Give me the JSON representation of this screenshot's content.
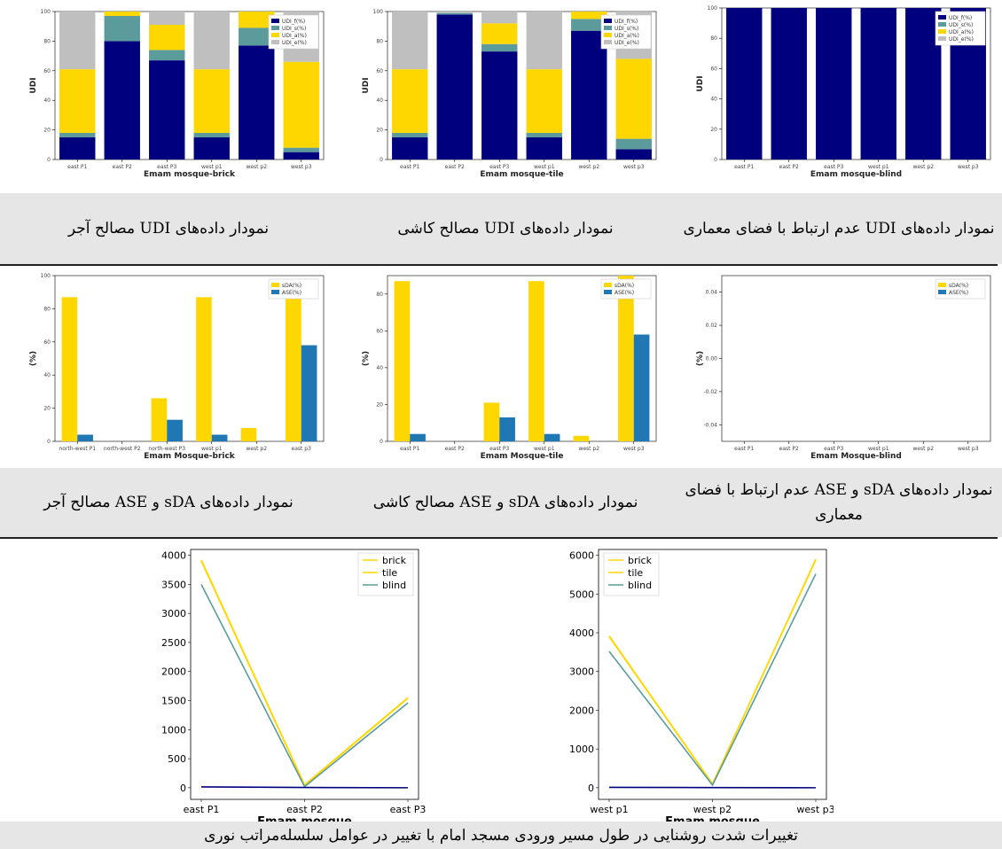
{
  "colors": {
    "udi_f": "#00007f",
    "udi_s": "#5b9b9b",
    "udi_a": "#ffd700",
    "udi_e": "#bfbfbf",
    "sda": "#ffd700",
    "ase": "#1f77b4",
    "brick": "#ffd700",
    "tile": "#ffd700",
    "blind": "#5b9b9b",
    "caption_band": "#e6e6e6"
  },
  "captions": {
    "udi_brick": "نمودار داده‌های UDI مصالح آجر",
    "udi_tile": "نمودار داده‌های UDI مصالح کاشی",
    "udi_blind": "نمودار داده‌های UDI عدم ارتباط با فضای معماری",
    "sda_brick": "نمودار داده‌های sDA و ASE مصالح آجر",
    "sda_tile": "نمودار داده‌های sDA و ASE مصالح کاشی",
    "sda_blind": "نمودار داده‌های sDA و ASE عدم ارتباط با فضای معماری",
    "bottom": "تغییرات شدت روشنایی در طول مسیر ورودی مسجد امام با تغییر در عوامل سلسله‌مراتب نوری"
  },
  "chart_data": [
    {
      "id": "udi_brick",
      "type": "bar",
      "stacked": true,
      "title": "",
      "xlabel": "Emam mosque-brick",
      "ylabel": "UDI",
      "ylim": [
        0,
        100
      ],
      "yticks": [
        0,
        20,
        40,
        60,
        80,
        100
      ],
      "categories": [
        "east P1",
        "east P2",
        "east P3",
        "west p1",
        "west p2",
        "west p3"
      ],
      "legend": "top-right",
      "series": [
        {
          "name": "UDI_f(%)",
          "color_key": "udi_f",
          "values": [
            15,
            80,
            67,
            15,
            77,
            5
          ]
        },
        {
          "name": "UDI_s(%)",
          "color_key": "udi_s",
          "values": [
            3,
            17,
            7,
            3,
            12,
            3
          ]
        },
        {
          "name": "UDI_a(%)",
          "color_key": "udi_a",
          "values": [
            43,
            3,
            17,
            43,
            11,
            58
          ]
        },
        {
          "name": "UDI_e(%)",
          "color_key": "udi_e",
          "values": [
            39,
            0,
            9,
            39,
            0,
            34
          ]
        }
      ]
    },
    {
      "id": "udi_tile",
      "type": "bar",
      "stacked": true,
      "title": "",
      "xlabel": "Emam mosque-tile",
      "ylabel": "UDI",
      "ylim": [
        0,
        100
      ],
      "yticks": [
        0,
        20,
        40,
        60,
        80,
        100
      ],
      "categories": [
        "east P1",
        "east P2",
        "east P3",
        "west p1",
        "west p2",
        "west p3"
      ],
      "legend": "top-right",
      "series": [
        {
          "name": "UDI_f(%)",
          "color_key": "udi_f",
          "values": [
            15,
            98,
            73,
            15,
            87,
            7
          ]
        },
        {
          "name": "UDI_s(%)",
          "color_key": "udi_s",
          "values": [
            3,
            1,
            5,
            3,
            8,
            7
          ]
        },
        {
          "name": "UDI_a(%)",
          "color_key": "udi_a",
          "values": [
            43,
            0,
            14,
            43,
            5,
            54
          ]
        },
        {
          "name": "UDI_e(%)",
          "color_key": "udi_e",
          "values": [
            39,
            1,
            8,
            39,
            0,
            32
          ]
        }
      ]
    },
    {
      "id": "udi_blind",
      "type": "bar",
      "stacked": true,
      "title": "",
      "xlabel": "Emam mosque-blind",
      "ylabel": "UDI",
      "ylim": [
        0,
        100
      ],
      "yticks": [
        0,
        20,
        40,
        60,
        80,
        100
      ],
      "categories": [
        "east P1",
        "east P2",
        "east P3",
        "west p1",
        "west p2",
        "west p3"
      ],
      "legend": "top-right",
      "series": [
        {
          "name": "UDI_f(%)",
          "color_key": "udi_f",
          "values": [
            100,
            100,
            100,
            100,
            100,
            100
          ]
        },
        {
          "name": "UDI_s(%)",
          "color_key": "udi_s",
          "values": [
            0,
            0,
            0,
            0,
            0,
            0
          ]
        },
        {
          "name": "UDI_a(%)",
          "color_key": "udi_a",
          "values": [
            0,
            0,
            0,
            0,
            0,
            0
          ]
        },
        {
          "name": "UDI_e(%)",
          "color_key": "udi_e",
          "values": [
            0,
            0,
            0,
            0,
            0,
            0
          ]
        }
      ]
    },
    {
      "id": "sda_brick",
      "type": "bar",
      "stacked": false,
      "title": "",
      "xlabel": "Emam Mosque-brick",
      "ylabel": "(%)",
      "ylim": [
        0,
        100
      ],
      "yticks": [
        0,
        20,
        40,
        60,
        80,
        100
      ],
      "categories": [
        "north-west P1",
        "north-west P2",
        "north-west P3",
        "west p1",
        "west p2",
        "east p3"
      ],
      "legend": "top-right",
      "series": [
        {
          "name": "sDA(%)",
          "color_key": "sda",
          "values": [
            87,
            0,
            26,
            87,
            8,
            93
          ]
        },
        {
          "name": "ASE(%)",
          "color_key": "ase",
          "values": [
            4,
            0,
            13,
            4,
            0,
            58
          ]
        }
      ]
    },
    {
      "id": "sda_tile",
      "type": "bar",
      "stacked": false,
      "title": "",
      "xlabel": "Emam Mosque-tile",
      "ylabel": "(%)",
      "ylim": [
        0,
        90
      ],
      "yticks": [
        0,
        20,
        40,
        60,
        80
      ],
      "categories": [
        "east P1",
        "east P2",
        "east P3",
        "west p1",
        "west p2",
        "west p3"
      ],
      "legend": "top-right",
      "series": [
        {
          "name": "sDA(%)",
          "color_key": "sda",
          "values": [
            87,
            0,
            21,
            87,
            3,
            92
          ]
        },
        {
          "name": "ASE(%)",
          "color_key": "ase",
          "values": [
            4,
            0,
            13,
            4,
            0,
            58
          ]
        }
      ]
    },
    {
      "id": "sda_blind",
      "type": "bar",
      "stacked": false,
      "title": "",
      "xlabel": "Emam Mosque-blind",
      "ylabel": "(%)",
      "ylim": [
        -0.05,
        0.05
      ],
      "yticks": [
        -0.04,
        -0.02,
        0.0,
        0.02,
        0.04
      ],
      "categories": [
        "east P1",
        "east P2",
        "east P3",
        "west p1",
        "west p2",
        "west p3"
      ],
      "legend": "top-right",
      "series": [
        {
          "name": "sDA(%)",
          "color_key": "sda",
          "values": [
            0,
            0,
            0,
            0,
            0,
            0
          ]
        },
        {
          "name": "ASE(%)",
          "color_key": "ase",
          "values": [
            0,
            0,
            0,
            0,
            0,
            0
          ]
        }
      ]
    },
    {
      "id": "line_east",
      "type": "line",
      "title": "",
      "xlabel": "Emam mosque",
      "ylabel": "",
      "ylim": [
        -200,
        4100
      ],
      "yticks": [
        0,
        500,
        1000,
        1500,
        2000,
        2500,
        3000,
        3500,
        4000
      ],
      "categories": [
        "east P1",
        "east P2",
        "east P3"
      ],
      "legend": "top-right",
      "series": [
        {
          "name": "brick",
          "color_key": "brick",
          "values": [
            3920,
            50,
            1550
          ]
        },
        {
          "name": "tile",
          "color_key": "tile",
          "values": [
            3900,
            40,
            1540
          ]
        },
        {
          "name": "blind",
          "color_key": "blind",
          "values": [
            3500,
            20,
            1460
          ]
        },
        {
          "name": "",
          "color_key": "udi_f",
          "values": [
            15,
            5,
            0
          ]
        }
      ]
    },
    {
      "id": "line_west",
      "type": "line",
      "title": "",
      "xlabel": "Emam mosque",
      "ylabel": "",
      "ylim": [
        -300,
        6150
      ],
      "yticks": [
        0,
        1000,
        2000,
        3000,
        4000,
        5000,
        6000
      ],
      "categories": [
        "west p1",
        "west p2",
        "west p3"
      ],
      "legend": "top-left",
      "series": [
        {
          "name": "brick",
          "color_key": "brick",
          "values": [
            3920,
            100,
            5900
          ]
        },
        {
          "name": "tile",
          "color_key": "tile",
          "values": [
            3900,
            90,
            5880
          ]
        },
        {
          "name": "blind",
          "color_key": "blind",
          "values": [
            3520,
            70,
            5520
          ]
        },
        {
          "name": "",
          "color_key": "udi_f",
          "values": [
            10,
            5,
            0
          ]
        }
      ]
    }
  ]
}
